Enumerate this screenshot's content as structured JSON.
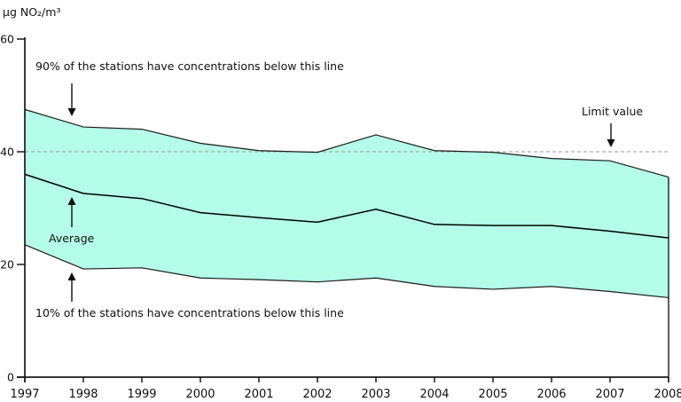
{
  "chart_data": {
    "type": "area",
    "title": "",
    "unit_label": "µg NO₂/m³",
    "xlabel": "",
    "ylabel": "µg NO₂/m³",
    "x": [
      1997,
      1998,
      1999,
      2000,
      2001,
      2002,
      2003,
      2004,
      2005,
      2006,
      2007,
      2008
    ],
    "series": [
      {
        "id": "p90",
        "name": "90% of the stations have concentrations below this line",
        "values": [
          47.5,
          44.4,
          44.0,
          41.5,
          40.2,
          39.9,
          43.0,
          40.2,
          39.9,
          38.8,
          38.4,
          35.5
        ]
      },
      {
        "id": "average",
        "name": "Average",
        "values": [
          36.0,
          32.6,
          31.7,
          29.2,
          28.3,
          27.5,
          29.8,
          27.1,
          26.9,
          26.9,
          25.9,
          24.7
        ]
      },
      {
        "id": "p10",
        "name": "10% of the stations have concentrations below this line",
        "values": [
          23.5,
          19.2,
          19.4,
          17.6,
          17.3,
          16.9,
          17.6,
          16.1,
          15.6,
          16.1,
          15.2,
          14.1
        ]
      }
    ],
    "limit": {
      "label": "Limit value",
      "value": 40
    },
    "ylim": [
      0,
      60
    ],
    "yticks": [
      0,
      20,
      40,
      60
    ],
    "grid": false,
    "legend_position": "none (inline arrow annotations)",
    "band_color": "#b4fde8",
    "band_edge_color": "#1a1a1a",
    "average_line_color": "#000000",
    "limit_line_color": "#999999",
    "axis_color": "#1a1a1a"
  }
}
